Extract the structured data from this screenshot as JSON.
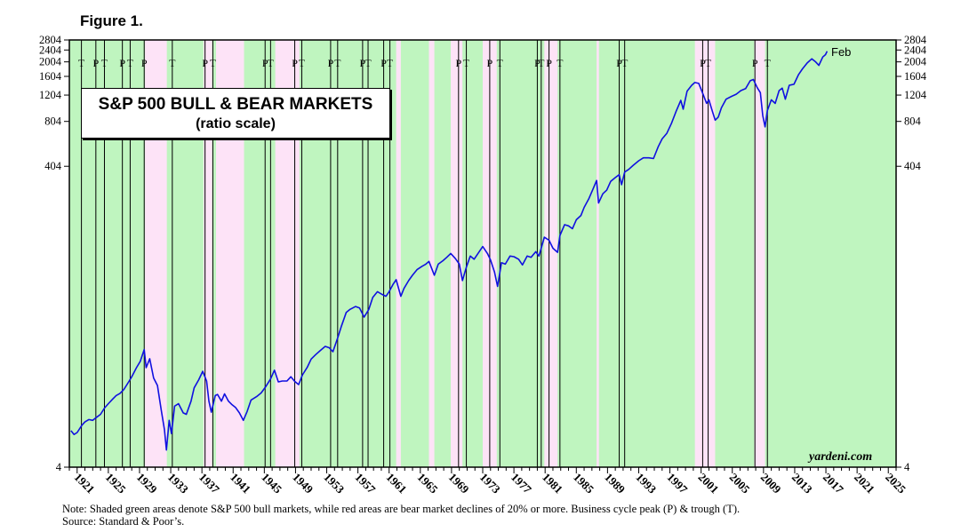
{
  "figure_label": "Figure 1.",
  "title": "S&P 500 BULL & BEAR MARKETS",
  "subtitle": "(ratio scale)",
  "watermark": "yardeni.com",
  "end_annotation": "Feb",
  "note_line1": "Note: Shaded green areas denote S&P 500 bull markets, while red areas are bear market declines of 20% or more. Business cycle peak (P) & trough (T).",
  "note_line2": "Source: Standard & Poor’s.",
  "colors": {
    "bull": "#bff5bf",
    "bear": "#fde3f7",
    "line": "#1010e0"
  },
  "chart_data": {
    "type": "line",
    "scale": "log",
    "xlim": [
      1920,
      2026
    ],
    "ylim": [
      4,
      2804
    ],
    "y_ticks": [
      4,
      404,
      804,
      1204,
      1604,
      2004,
      2404,
      2804
    ],
    "x_ticks": [
      "1921",
      "1925",
      "1929",
      "1933",
      "1937",
      "1941",
      "1945",
      "1949",
      "1953",
      "1957",
      "1961",
      "1965",
      "1969",
      "1973",
      "1977",
      "1981",
      "1985",
      "1989",
      "1993",
      "1997",
      "2001",
      "2005",
      "2009",
      "2013",
      "2017",
      "2021",
      "2025"
    ],
    "series": [
      {
        "values": [
          [
            1920.2,
            7.0
          ],
          [
            1920.6,
            6.6
          ],
          [
            1921.0,
            6.8
          ],
          [
            1921.6,
            7.6
          ],
          [
            1922.0,
            8.0
          ],
          [
            1922.5,
            8.3
          ],
          [
            1923.0,
            8.2
          ],
          [
            1923.5,
            8.6
          ],
          [
            1924.0,
            9.0
          ],
          [
            1924.5,
            9.9
          ],
          [
            1925.0,
            10.6
          ],
          [
            1925.5,
            11.3
          ],
          [
            1926.0,
            12.0
          ],
          [
            1926.5,
            12.4
          ],
          [
            1927.0,
            13.2
          ],
          [
            1927.6,
            14.8
          ],
          [
            1928.0,
            16.0
          ],
          [
            1928.6,
            18.4
          ],
          [
            1929.1,
            20.3
          ],
          [
            1929.6,
            24.3
          ],
          [
            1929.85,
            18.4
          ],
          [
            1930.3,
            21.1
          ],
          [
            1930.8,
            15.7
          ],
          [
            1931.3,
            14.0
          ],
          [
            1931.8,
            9.5
          ],
          [
            1932.2,
            7.1
          ],
          [
            1932.45,
            5.2
          ],
          [
            1932.8,
            8.2
          ],
          [
            1933.1,
            6.7
          ],
          [
            1933.5,
            10.2
          ],
          [
            1934.0,
            10.6
          ],
          [
            1934.6,
            9.2
          ],
          [
            1935.0,
            9.0
          ],
          [
            1935.6,
            11.0
          ],
          [
            1936.0,
            13.5
          ],
          [
            1936.6,
            15.3
          ],
          [
            1937.1,
            17.4
          ],
          [
            1937.6,
            15.0
          ],
          [
            1937.9,
            11.0
          ],
          [
            1938.2,
            9.3
          ],
          [
            1938.7,
            12.0
          ],
          [
            1939.0,
            12.2
          ],
          [
            1939.5,
            11.0
          ],
          [
            1939.9,
            12.3
          ],
          [
            1940.4,
            11.0
          ],
          [
            1940.8,
            10.5
          ],
          [
            1941.3,
            10.0
          ],
          [
            1941.8,
            9.2
          ],
          [
            1942.3,
            8.2
          ],
          [
            1942.8,
            9.4
          ],
          [
            1943.3,
            11.2
          ],
          [
            1944.0,
            11.8
          ],
          [
            1944.6,
            12.5
          ],
          [
            1945.2,
            13.8
          ],
          [
            1945.8,
            15.5
          ],
          [
            1946.3,
            17.7
          ],
          [
            1946.8,
            14.8
          ],
          [
            1947.3,
            15.0
          ],
          [
            1947.9,
            15.0
          ],
          [
            1948.4,
            16.0
          ],
          [
            1948.9,
            14.9
          ],
          [
            1949.4,
            14.2
          ],
          [
            1949.9,
            16.5
          ],
          [
            1950.5,
            18.5
          ],
          [
            1951.0,
            21.0
          ],
          [
            1951.6,
            22.5
          ],
          [
            1952.2,
            24.0
          ],
          [
            1952.8,
            25.5
          ],
          [
            1953.3,
            25.0
          ],
          [
            1953.8,
            23.5
          ],
          [
            1954.4,
            29.0
          ],
          [
            1954.9,
            35.0
          ],
          [
            1955.5,
            43.0
          ],
          [
            1956.0,
            45.0
          ],
          [
            1956.7,
            47.0
          ],
          [
            1957.2,
            46.0
          ],
          [
            1957.8,
            40.0
          ],
          [
            1958.4,
            45.0
          ],
          [
            1958.9,
            54.0
          ],
          [
            1959.5,
            59.0
          ],
          [
            1960.0,
            57.0
          ],
          [
            1960.6,
            55.0
          ],
          [
            1961.0,
            59.0
          ],
          [
            1961.5,
            66.0
          ],
          [
            1961.9,
            71.0
          ],
          [
            1962.5,
            55.0
          ],
          [
            1962.9,
            62.0
          ],
          [
            1963.5,
            70.0
          ],
          [
            1964.0,
            76.0
          ],
          [
            1964.6,
            83.0
          ],
          [
            1965.2,
            87.0
          ],
          [
            1965.7,
            90.0
          ],
          [
            1966.1,
            94.0
          ],
          [
            1966.8,
            76.0
          ],
          [
            1967.3,
            90.0
          ],
          [
            1967.9,
            95.0
          ],
          [
            1968.4,
            100.0
          ],
          [
            1968.9,
            106.0
          ],
          [
            1969.5,
            98.0
          ],
          [
            1970.0,
            90.0
          ],
          [
            1970.4,
            70.0
          ],
          [
            1970.9,
            86.0
          ],
          [
            1971.4,
            102.0
          ],
          [
            1971.9,
            97.0
          ],
          [
            1972.5,
            108.0
          ],
          [
            1973.0,
            118.0
          ],
          [
            1973.6,
            106.0
          ],
          [
            1974.0,
            96.0
          ],
          [
            1974.5,
            80.0
          ],
          [
            1974.9,
            64.0
          ],
          [
            1975.4,
            92.0
          ],
          [
            1975.9,
            90.0
          ],
          [
            1976.5,
            102.0
          ],
          [
            1977.0,
            101.0
          ],
          [
            1977.6,
            97.0
          ],
          [
            1978.1,
            89.0
          ],
          [
            1978.7,
            102.0
          ],
          [
            1979.2,
            100.0
          ],
          [
            1979.8,
            109.0
          ],
          [
            1980.2,
            102.0
          ],
          [
            1980.5,
            115.0
          ],
          [
            1980.9,
            136.0
          ],
          [
            1981.5,
            130.0
          ],
          [
            1982.0,
            115.0
          ],
          [
            1982.6,
            108.0
          ],
          [
            1982.9,
            140.0
          ],
          [
            1983.5,
            165.0
          ],
          [
            1984.0,
            162.0
          ],
          [
            1984.5,
            155.0
          ],
          [
            1985.0,
            178.0
          ],
          [
            1985.6,
            190.0
          ],
          [
            1986.0,
            215.0
          ],
          [
            1986.6,
            245.0
          ],
          [
            1987.2,
            290.0
          ],
          [
            1987.6,
            325.0
          ],
          [
            1987.85,
            230.0
          ],
          [
            1988.4,
            265.0
          ],
          [
            1988.9,
            280.0
          ],
          [
            1989.4,
            320.0
          ],
          [
            1990.0,
            340.0
          ],
          [
            1990.5,
            355.0
          ],
          [
            1990.8,
            305.0
          ],
          [
            1991.2,
            370.0
          ],
          [
            1991.7,
            385.0
          ],
          [
            1992.3,
            410.0
          ],
          [
            1993.0,
            440.0
          ],
          [
            1993.6,
            460.0
          ],
          [
            1994.3,
            460.0
          ],
          [
            1994.9,
            455.0
          ],
          [
            1995.5,
            545.0
          ],
          [
            1996.0,
            615.0
          ],
          [
            1996.6,
            670.0
          ],
          [
            1997.2,
            780.0
          ],
          [
            1997.8,
            940.0
          ],
          [
            1998.4,
            1110.0
          ],
          [
            1998.7,
            970.0
          ],
          [
            1999.2,
            1280.0
          ],
          [
            1999.8,
            1400.0
          ],
          [
            2000.2,
            1460.0
          ],
          [
            2000.7,
            1440.0
          ],
          [
            2001.2,
            1240.0
          ],
          [
            2001.7,
            1060.0
          ],
          [
            2002.0,
            1120.0
          ],
          [
            2002.5,
            920.0
          ],
          [
            2002.8,
            820.0
          ],
          [
            2003.2,
            860.0
          ],
          [
            2003.6,
            990.0
          ],
          [
            2004.2,
            1130.0
          ],
          [
            2004.9,
            1180.0
          ],
          [
            2005.5,
            1220.0
          ],
          [
            2006.1,
            1290.0
          ],
          [
            2006.7,
            1330.0
          ],
          [
            2007.3,
            1500.0
          ],
          [
            2007.7,
            1530.0
          ],
          [
            2008.2,
            1350.0
          ],
          [
            2008.6,
            1250.0
          ],
          [
            2008.9,
            880.0
          ],
          [
            2009.2,
            740.0
          ],
          [
            2009.5,
            950.0
          ],
          [
            2010.0,
            1120.0
          ],
          [
            2010.5,
            1060.0
          ],
          [
            2011.0,
            1290.0
          ],
          [
            2011.4,
            1340.0
          ],
          [
            2011.8,
            1130.0
          ],
          [
            2012.3,
            1400.0
          ],
          [
            2012.9,
            1420.0
          ],
          [
            2013.5,
            1650.0
          ],
          [
            2014.0,
            1800.0
          ],
          [
            2014.6,
            1970.0
          ],
          [
            2015.2,
            2100.0
          ],
          [
            2015.7,
            2000.0
          ],
          [
            2016.1,
            1900.0
          ],
          [
            2016.6,
            2160.0
          ],
          [
            2016.95,
            2240.0
          ],
          [
            2017.15,
            2360.0
          ]
        ]
      }
    ],
    "bear_markets": [
      [
        1929.7,
        1932.5
      ],
      [
        1937.2,
        1938.3
      ],
      [
        1938.8,
        1942.4
      ],
      [
        1946.4,
        1949.5
      ],
      [
        1961.9,
        1962.5
      ],
      [
        1966.1,
        1966.8
      ],
      [
        1968.9,
        1970.4
      ],
      [
        1973.0,
        1974.8
      ],
      [
        1980.9,
        1982.6
      ],
      [
        1987.6,
        1987.9
      ],
      [
        2000.2,
        2002.8
      ],
      [
        2007.8,
        2009.2
      ]
    ],
    "business_cycle_lines": [
      [
        "T",
        1921.55
      ],
      [
        "P",
        1923.4
      ],
      [
        "T",
        1924.5
      ],
      [
        "P",
        1926.8
      ],
      [
        "T",
        1927.8
      ],
      [
        "P",
        1929.6
      ],
      [
        "T",
        1933.2
      ],
      [
        "P",
        1937.4
      ],
      [
        "T",
        1938.4
      ],
      [
        "P",
        1945.1
      ],
      [
        "T",
        1945.8
      ],
      [
        "P",
        1948.9
      ],
      [
        "T",
        1949.8
      ],
      [
        "P",
        1953.5
      ],
      [
        "T",
        1954.4
      ],
      [
        "P",
        1957.6
      ],
      [
        "T",
        1958.3
      ],
      [
        "P",
        1960.3
      ],
      [
        "T",
        1961.1
      ],
      [
        "P",
        1969.9
      ],
      [
        "T",
        1970.9
      ],
      [
        "P",
        1973.9
      ],
      [
        "T",
        1975.2
      ],
      [
        "P",
        1980.0
      ],
      [
        "T",
        1980.5
      ],
      [
        "P",
        1981.5
      ],
      [
        "T",
        1982.9
      ],
      [
        "P",
        1990.5
      ],
      [
        "T",
        1991.2
      ],
      [
        "P",
        2001.2
      ],
      [
        "T",
        2001.9
      ],
      [
        "P",
        2007.9
      ],
      [
        "T",
        2009.5
      ]
    ]
  }
}
